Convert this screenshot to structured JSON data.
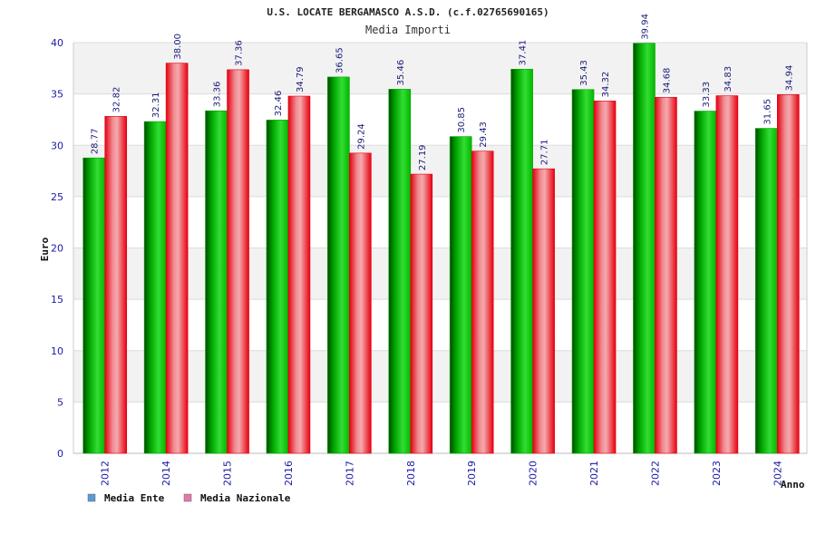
{
  "chart_data": {
    "type": "bar",
    "title": "U.S. LOCATE BERGAMASCO A.S.D. (c.f.02765690165)",
    "subtitle": "Media Importi",
    "xlabel": "Anno",
    "ylabel": "Euro",
    "ylim": [
      0,
      40
    ],
    "yticks": [
      0,
      5,
      10,
      15,
      20,
      25,
      30,
      35,
      40
    ],
    "grid": true,
    "legend_position": "bottom-left",
    "categories": [
      "2012",
      "2014",
      "2015",
      "2016",
      "2017",
      "2018",
      "2019",
      "2020",
      "2021",
      "2022",
      "2023",
      "2024"
    ],
    "series": [
      {
        "name": "Media Ente",
        "legend_color": "#5b9bd5",
        "bar_color": "#0fa80f",
        "values": [
          28.77,
          32.31,
          33.36,
          32.46,
          36.65,
          35.46,
          30.85,
          37.41,
          35.43,
          39.94,
          33.33,
          31.65
        ],
        "labels": [
          "28.77",
          "32.31",
          "33.36",
          "32.46",
          "36.65",
          "35.46",
          "30.85",
          "37.41",
          "35.43",
          "39.94",
          "33.33",
          "31.65"
        ]
      },
      {
        "name": "Media Nazionale",
        "legend_color": "#e07aa8",
        "bar_color": "#e8101a",
        "values": [
          32.82,
          38.0,
          37.36,
          34.79,
          29.24,
          27.19,
          29.43,
          27.71,
          34.32,
          34.68,
          34.83,
          34.94
        ],
        "labels": [
          "32.82",
          "38.00",
          "37.36",
          "34.79",
          "29.24",
          "27.19",
          "29.43",
          "27.71",
          "34.32",
          "34.68",
          "34.83",
          "34.94"
        ]
      }
    ]
  }
}
